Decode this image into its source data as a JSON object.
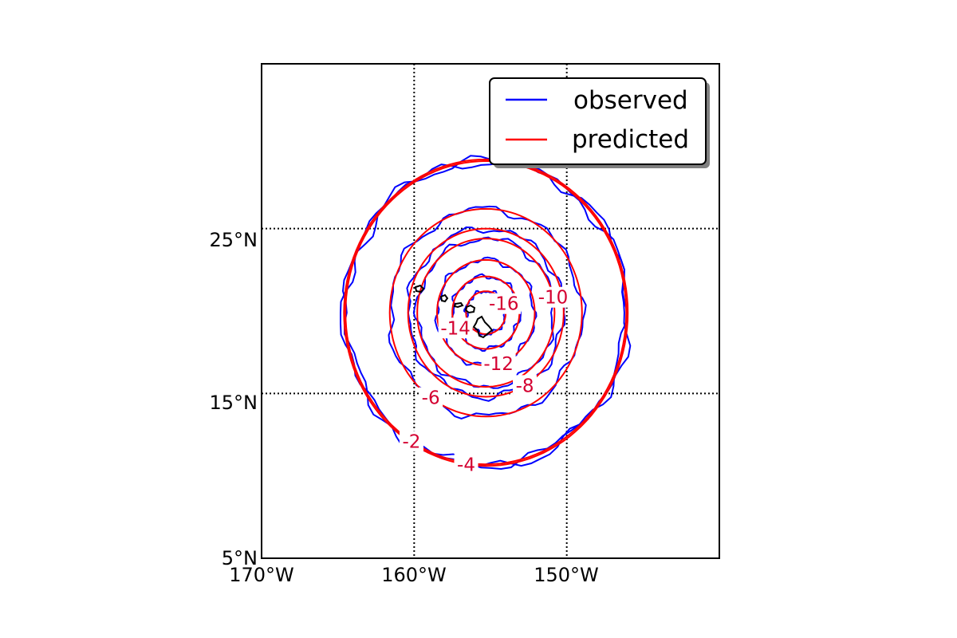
{
  "map": {
    "projection": "equirectangular",
    "lon_range": [
      -170,
      -140
    ],
    "lat_range": [
      5,
      35
    ],
    "meridians": [
      -170,
      -160,
      -150
    ],
    "parallels": [
      5,
      15,
      25
    ],
    "x_tick_labels": [
      "170°W",
      "160°W",
      "150°W"
    ],
    "y_tick_labels": [
      "5°N",
      "15°N",
      "25°N"
    ],
    "gridline_style": "dotted",
    "grid": true,
    "coastline_color": "#000000",
    "center": {
      "lon": -155.3,
      "lat": 19.9
    }
  },
  "chart_data": {
    "type": "contour",
    "levels": [
      -16,
      -14,
      -12,
      -10,
      -8,
      -6,
      -4,
      -2
    ],
    "contour_labels": [
      "-16",
      "-14",
      "-12",
      "-10",
      "-8",
      "-6",
      "-4",
      "-2"
    ],
    "contour_radii_deg": {
      "-16": 1.3,
      "-14": 2.2,
      "-12": 3.2,
      "-10": 4.5,
      "-8": 5.1,
      "-6": 6.3,
      "-4": 9.3,
      "-2": 9.2
    },
    "series": [
      {
        "name": "observed",
        "color": "#0000ff"
      },
      {
        "name": "predicted",
        "color": "#ff0000"
      }
    ],
    "legend": {
      "position": "top-right",
      "entries": [
        "observed",
        "predicted"
      ]
    }
  }
}
